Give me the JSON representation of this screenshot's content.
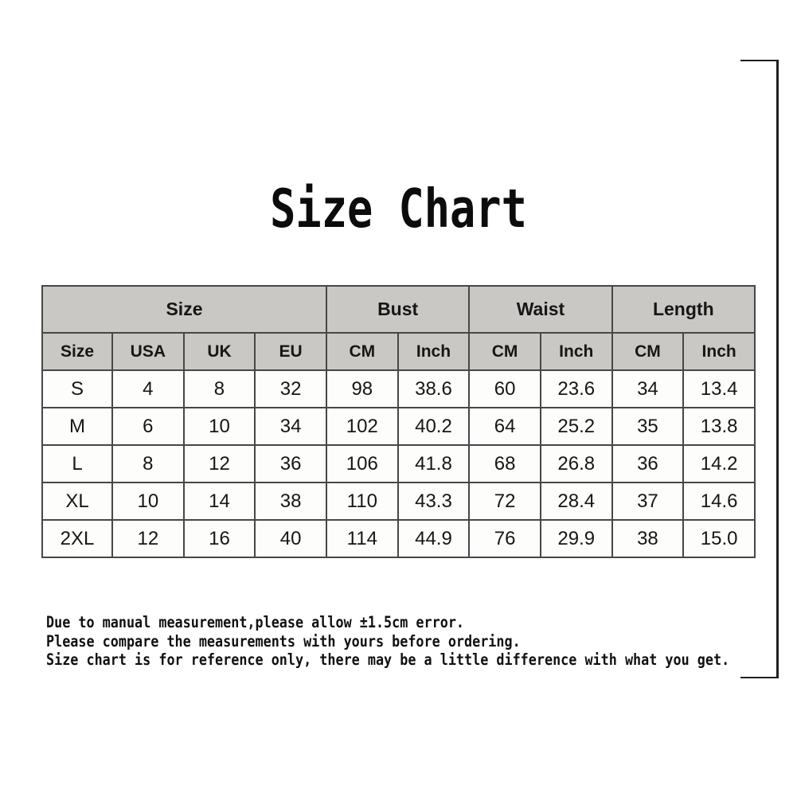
{
  "chart_data": {
    "type": "table",
    "title": "Size Chart",
    "group_headers": [
      {
        "label": "Size",
        "colspan": 4
      },
      {
        "label": "Bust",
        "colspan": 2
      },
      {
        "label": "Waist",
        "colspan": 2
      },
      {
        "label": "Length",
        "colspan": 2
      }
    ],
    "columns": [
      "Size",
      "USA",
      "UK",
      "EU",
      "CM",
      "Inch",
      "CM",
      "Inch",
      "CM",
      "Inch"
    ],
    "rows": [
      [
        "S",
        "4",
        "8",
        "32",
        "98",
        "38.6",
        "60",
        "23.6",
        "34",
        "13.4"
      ],
      [
        "M",
        "6",
        "10",
        "34",
        "102",
        "40.2",
        "64",
        "25.2",
        "35",
        "13.8"
      ],
      [
        "L",
        "8",
        "12",
        "36",
        "106",
        "41.8",
        "68",
        "26.8",
        "36",
        "14.2"
      ],
      [
        "XL",
        "10",
        "14",
        "38",
        "110",
        "43.3",
        "72",
        "28.4",
        "37",
        "14.6"
      ],
      [
        "2XL",
        "12",
        "16",
        "40",
        "114",
        "44.9",
        "76",
        "29.9",
        "38",
        "15.0"
      ]
    ],
    "notes": [
      "Due to manual measurement,please allow ±1.5cm error.",
      "Please compare the measurements with yours before ordering.",
      "Size chart is for reference only, there may be a little difference with what you get."
    ],
    "colors": {
      "header_bg": "#c9c8c5",
      "row_bg": "#fdfdfb",
      "border": "#474747",
      "text": "#161616",
      "title_text": "#0c0c0c"
    },
    "layout_hints": {
      "units_row": "CM / Inch pairs under Bust, Waist and Length",
      "size_group_spans": "Size spans Size, USA, UK, EU columns"
    }
  }
}
